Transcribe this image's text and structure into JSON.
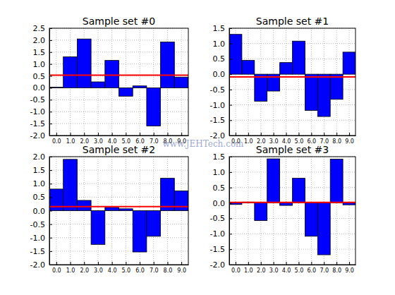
{
  "chart_data": [
    {
      "type": "bar",
      "title": "Sample set #0",
      "color": "#0000ff",
      "grid": true,
      "x": [
        0,
        1,
        2,
        3,
        4,
        5,
        6,
        7,
        8,
        9
      ],
      "values": [
        0.03,
        1.3,
        2.05,
        0.25,
        1.15,
        -0.35,
        0.08,
        -1.6,
        1.92,
        0.45
      ],
      "mean": 0.53,
      "xlim": [
        -0.5,
        9.5
      ],
      "xticks": [
        {
          "value": 0,
          "label": "0.0"
        },
        {
          "value": 1,
          "label": "1.0"
        },
        {
          "value": 2,
          "label": "2.0"
        },
        {
          "value": 3,
          "label": "3.0"
        },
        {
          "value": 4,
          "label": "4.0"
        },
        {
          "value": 5,
          "label": "5.0"
        },
        {
          "value": 6,
          "label": "6.0"
        },
        {
          "value": 7,
          "label": "7.0"
        },
        {
          "value": 8,
          "label": "8.0"
        },
        {
          "value": 9,
          "label": "9.0"
        }
      ],
      "ylim": [
        -2,
        2.5
      ],
      "yticks": [
        {
          "value": -2,
          "label": "-2.0"
        },
        {
          "value": -1.5,
          "label": "-1.5"
        },
        {
          "value": -1,
          "label": "-1.0"
        },
        {
          "value": -0.5,
          "label": "-0.5"
        },
        {
          "value": 0,
          "label": "0.0"
        },
        {
          "value": 0.5,
          "label": "0.5"
        },
        {
          "value": 1,
          "label": "1.0"
        },
        {
          "value": 1.5,
          "label": "1.5"
        },
        {
          "value": 2,
          "label": "2.0"
        },
        {
          "value": 2.5,
          "label": "2.5"
        }
      ]
    },
    {
      "type": "bar",
      "title": "Sample set #1",
      "color": "#0000ff",
      "grid": true,
      "x": [
        0,
        1,
        2,
        3,
        4,
        5,
        6,
        7,
        8,
        9
      ],
      "values": [
        1.3,
        0.45,
        -0.88,
        -0.55,
        0.38,
        1.08,
        -1.18,
        -1.38,
        -0.82,
        0.72
      ],
      "mean": -0.09,
      "xlim": [
        -0.5,
        9.5
      ],
      "xticks": [
        {
          "value": 0,
          "label": "0.0"
        },
        {
          "value": 1,
          "label": "1.0"
        },
        {
          "value": 2,
          "label": "2.0"
        },
        {
          "value": 3,
          "label": "3.0"
        },
        {
          "value": 4,
          "label": "4.0"
        },
        {
          "value": 5,
          "label": "5.0"
        },
        {
          "value": 6,
          "label": "6.0"
        },
        {
          "value": 7,
          "label": "7.0"
        },
        {
          "value": 8,
          "label": "8.0"
        },
        {
          "value": 9,
          "label": "9.0"
        }
      ],
      "ylim": [
        -2,
        1.5
      ],
      "yticks": [
        {
          "value": -2,
          "label": "-2.0"
        },
        {
          "value": -1.5,
          "label": "-1.5"
        },
        {
          "value": -1,
          "label": "-1.0"
        },
        {
          "value": -0.5,
          "label": "-0.5"
        },
        {
          "value": 0,
          "label": "0.0"
        },
        {
          "value": 0.5,
          "label": "0.5"
        },
        {
          "value": 1,
          "label": "1.0"
        },
        {
          "value": 1.5,
          "label": "1.5"
        }
      ]
    },
    {
      "type": "bar",
      "title": "Sample set #2",
      "color": "#0000ff",
      "grid": true,
      "annotation": "www.JEHTech.com",
      "x": [
        0,
        1,
        2,
        3,
        4,
        5,
        6,
        7,
        8,
        9
      ],
      "values": [
        0.8,
        1.9,
        0.38,
        -1.25,
        0.12,
        0.07,
        -1.53,
        -0.95,
        1.2,
        0.73
      ],
      "mean": 0.15,
      "xlim": [
        -0.5,
        9.5
      ],
      "xticks": [
        {
          "value": 0,
          "label": "0.0"
        },
        {
          "value": 1,
          "label": "1.0"
        },
        {
          "value": 2,
          "label": "2.0"
        },
        {
          "value": 3,
          "label": "3.0"
        },
        {
          "value": 4,
          "label": "4.0"
        },
        {
          "value": 5,
          "label": "5.0"
        },
        {
          "value": 6,
          "label": "6.0"
        },
        {
          "value": 7,
          "label": "7.0"
        },
        {
          "value": 8,
          "label": "8.0"
        },
        {
          "value": 9,
          "label": "9.0"
        }
      ],
      "ylim": [
        -2,
        2
      ],
      "yticks": [
        {
          "value": -2,
          "label": "-2.0"
        },
        {
          "value": -1.5,
          "label": "-1.5"
        },
        {
          "value": -1,
          "label": "-1.0"
        },
        {
          "value": -0.5,
          "label": "-0.5"
        },
        {
          "value": 0,
          "label": "0.0"
        },
        {
          "value": 0.5,
          "label": "0.5"
        },
        {
          "value": 1,
          "label": "1.0"
        },
        {
          "value": 1.5,
          "label": "1.5"
        },
        {
          "value": 2,
          "label": "2.0"
        }
      ]
    },
    {
      "type": "bar",
      "title": "Sample set #3",
      "color": "#0000ff",
      "grid": true,
      "x": [
        0,
        1,
        2,
        3,
        4,
        5,
        6,
        7,
        8,
        9
      ],
      "values": [
        -0.05,
        0.03,
        -0.57,
        1.43,
        -0.08,
        0.8,
        -1.08,
        -1.68,
        1.42,
        -0.06
      ],
      "mean": 0.02,
      "xlim": [
        -0.5,
        9.5
      ],
      "xticks": [
        {
          "value": 0,
          "label": "0.0"
        },
        {
          "value": 1,
          "label": "1.0"
        },
        {
          "value": 2,
          "label": "2.0"
        },
        {
          "value": 3,
          "label": "3.0"
        },
        {
          "value": 4,
          "label": "4.0"
        },
        {
          "value": 5,
          "label": "5.0"
        },
        {
          "value": 6,
          "label": "6.0"
        },
        {
          "value": 7,
          "label": "7.0"
        },
        {
          "value": 8,
          "label": "8.0"
        },
        {
          "value": 9,
          "label": "9.0"
        }
      ],
      "ylim": [
        -2,
        1.5
      ],
      "yticks": [
        {
          "value": -2,
          "label": "-2.0"
        },
        {
          "value": -1.5,
          "label": "-1.5"
        },
        {
          "value": -1,
          "label": "-1.0"
        },
        {
          "value": -0.5,
          "label": "-0.5"
        },
        {
          "value": 0,
          "label": "0.0"
        },
        {
          "value": 0.5,
          "label": "0.5"
        },
        {
          "value": 1,
          "label": "1.0"
        },
        {
          "value": 1.5,
          "label": "1.5"
        }
      ]
    }
  ]
}
